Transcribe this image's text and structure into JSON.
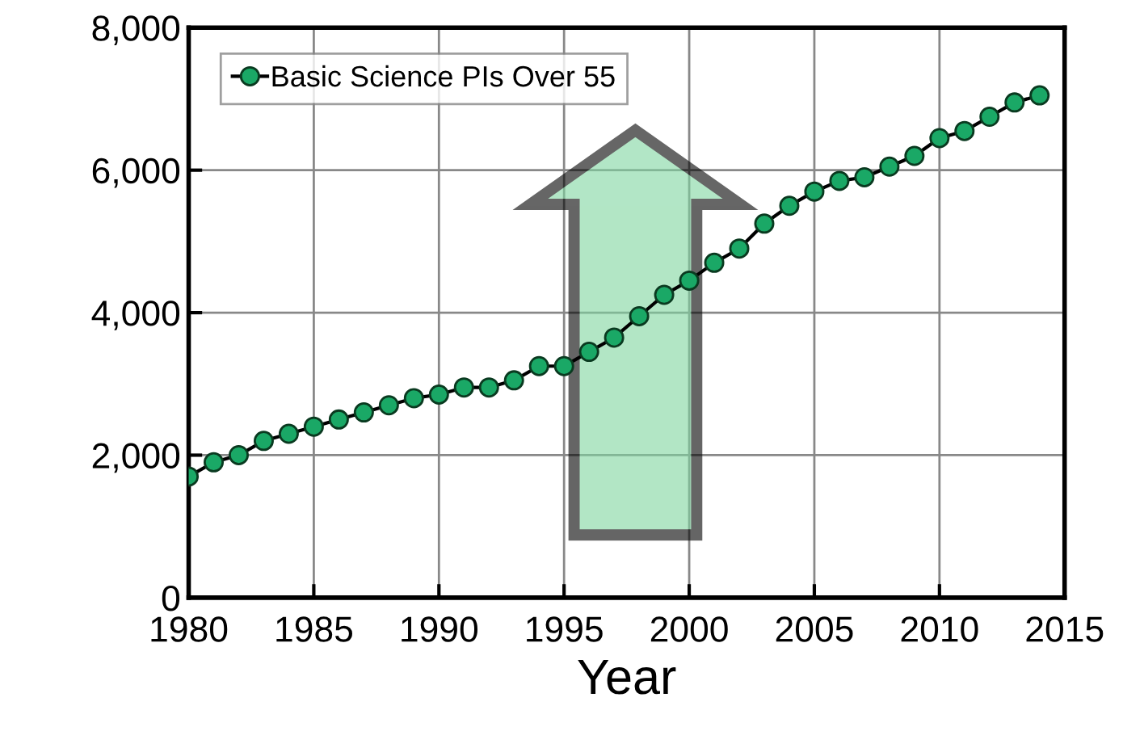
{
  "chart_data": {
    "type": "line",
    "xlabel": "Year",
    "x": [
      1980,
      1981,
      1982,
      1983,
      1984,
      1985,
      1986,
      1987,
      1988,
      1989,
      1990,
      1991,
      1992,
      1993,
      1994,
      1995,
      1996,
      1997,
      1998,
      1999,
      2000,
      2001,
      2002,
      2003,
      2004,
      2005,
      2006,
      2007,
      2008,
      2009,
      2010,
      2011,
      2012,
      2013,
      2014
    ],
    "series": [
      {
        "name": "Basic Science PIs Over 55",
        "color": "#1aa866",
        "values": [
          1700,
          1900,
          2000,
          2200,
          2300,
          2400,
          2500,
          2600,
          2700,
          2800,
          2850,
          2950,
          2950,
          3050,
          3250,
          3250,
          3450,
          3650,
          3950,
          4250,
          4450,
          4700,
          4900,
          5250,
          5500,
          5700,
          5850,
          5900,
          6050,
          6200,
          6450,
          6550,
          6750,
          6950,
          7050
        ]
      }
    ],
    "xlim": [
      1980,
      2015
    ],
    "xticks": [
      1980,
      1985,
      1990,
      1995,
      2000,
      2005,
      2010,
      2015
    ],
    "ylim": [
      0,
      8000
    ],
    "yticks": [
      {
        "value": 0,
        "label": "0"
      },
      {
        "value": 2000,
        "label": "2,000"
      },
      {
        "value": 4000,
        "label": "4,000"
      },
      {
        "value": 6000,
        "label": "6,000"
      },
      {
        "value": 8000,
        "label": "8,000"
      }
    ],
    "grid": true,
    "legend": "top left",
    "marker": "circle",
    "line_style": "solid"
  }
}
